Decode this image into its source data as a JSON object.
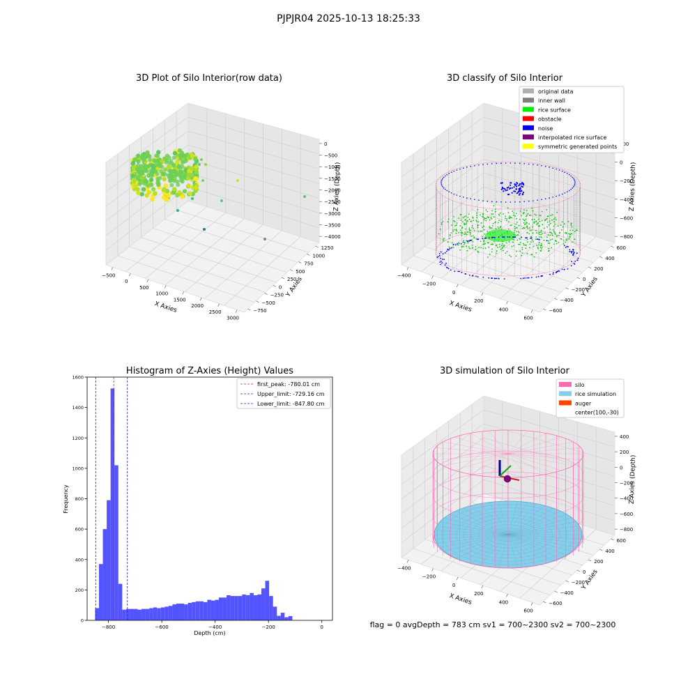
{
  "figure": {
    "suptitle": "PJPJR04 2025-10-13 18:25:33",
    "status_line": "flag = 0     avgDepth = 783 cm  sv1 = 700~2300  sv2 = 700~2300"
  },
  "chart_data": [
    {
      "type": "scatter",
      "projection": "3d",
      "title": "3D Plot of Silo Interior(row data)",
      "xlabel": "X Axies",
      "ylabel": "Y Axies",
      "zlabel": "Z Axies (Depth)",
      "xticks": [
        "−500",
        "0",
        "500",
        "1000",
        "1500",
        "2000",
        "2500",
        "3000"
      ],
      "yticks": [
        "−750",
        "−500",
        "−250",
        "0",
        "250",
        "500",
        "750",
        "1000",
        "1250"
      ],
      "zticks": [
        "0",
        "−500",
        "−1000",
        "−1500",
        "−2000",
        "−2500",
        "−3000",
        "−3500",
        "−4000"
      ],
      "xlim": [
        -600,
        3100
      ],
      "ylim": [
        -800,
        1350
      ],
      "zlim": [
        -4100,
        100
      ],
      "colormap": "viridis",
      "main_cloud": {
        "x_range": [
          -500,
          600
        ],
        "y_range": [
          -600,
          600
        ],
        "z_range": [
          -1600,
          -800
        ]
      },
      "outliers": [
        {
          "x": 400,
          "y": 300,
          "z": -1000
        },
        {
          "x": 500,
          "y": 200,
          "z": -1100
        },
        {
          "x": 600,
          "y": 100,
          "z": -1500
        },
        {
          "x": 900,
          "y": -100,
          "z": -1500
        },
        {
          "x": 700,
          "y": 0,
          "z": -2200
        },
        {
          "x": 200,
          "y": -300,
          "z": -2600
        },
        {
          "x": 400,
          "y": -500,
          "z": -2800
        },
        {
          "x": 1200,
          "y": -300,
          "z": -2000
        },
        {
          "x": 2600,
          "y": 500,
          "z": -1300
        },
        {
          "x": 2500,
          "y": -700,
          "z": -3500
        }
      ]
    },
    {
      "type": "scatter",
      "projection": "3d",
      "title": "3D classify of Silo Interior",
      "xlabel": "X Axies",
      "ylabel": "Y Axies",
      "zlabel": "Z Axies (Depth)",
      "xticks": [
        "−400",
        "−200",
        "0",
        "200",
        "400",
        "600"
      ],
      "yticks": [
        "−600",
        "−400",
        "−200",
        "0",
        "200",
        "400",
        "600"
      ],
      "zticks": [
        "200",
        "0",
        "−200",
        "−400",
        "−600",
        "−800"
      ],
      "xlim": [
        -500,
        700
      ],
      "ylim": [
        -650,
        650
      ],
      "zlim": [
        -900,
        250
      ],
      "legend_location": "upper right",
      "legend": [
        {
          "label": "original data",
          "color": "#b0b0b0"
        },
        {
          "label": "inner wall",
          "color": "#808080"
        },
        {
          "label": "rice surface",
          "color": "#00ee00"
        },
        {
          "label": "obstacle",
          "color": "#ff0000"
        },
        {
          "label": "noise",
          "color": "#0000ee"
        },
        {
          "label": "interpolated rice surface",
          "color": "#800080"
        },
        {
          "label": "symmetric generated points",
          "color": "#ffff00"
        }
      ],
      "silo": {
        "center": [
          100,
          -30
        ],
        "radius": 600,
        "top_z": 0,
        "bottom_z": -820
      }
    },
    {
      "type": "bar",
      "title": "Histogram of Z-Axies (Height) Values",
      "xlabel": "Depth (cm)",
      "ylabel": "Frequency",
      "xlim": [
        -880,
        40
      ],
      "ylim": [
        0,
        1600
      ],
      "xticks": [
        -800,
        -600,
        -400,
        -200,
        0
      ],
      "xtick_labels": [
        "−800",
        "−600",
        "−400",
        "−200",
        "0"
      ],
      "yticks": [
        0,
        200,
        400,
        600,
        800,
        1000,
        1200,
        1400,
        1600
      ],
      "ytick_labels": [
        "0",
        "200",
        "400",
        "600",
        "800",
        "1000",
        "1200",
        "1400",
        "1600"
      ],
      "bar_color": "#4b4bff",
      "bin_start": -850,
      "bin_width": 14.5,
      "counts": [
        80,
        370,
        600,
        790,
        1525,
        1020,
        240,
        70,
        75,
        75,
        75,
        70,
        75,
        75,
        80,
        85,
        80,
        85,
        90,
        95,
        105,
        110,
        110,
        105,
        115,
        120,
        125,
        125,
        120,
        135,
        130,
        135,
        150,
        150,
        165,
        160,
        160,
        160,
        170,
        165,
        180,
        165,
        170,
        210,
        260,
        160,
        90,
        30,
        50,
        20,
        28
      ],
      "legend_location": "upper right",
      "vlines": [
        {
          "x": -780.01,
          "label": "first_peak: -780.01 cm",
          "color": "#dd2222"
        },
        {
          "x": -729.16,
          "label": "Upper_limit: -729.16 cm",
          "color": "#2222dd"
        },
        {
          "x": -847.8,
          "label": "Lower_limit: -847.80 cm",
          "color": "#2222dd"
        }
      ]
    },
    {
      "type": "surface",
      "projection": "3d",
      "title": "3D simulation of Silo Interior",
      "xlabel": "X Axies",
      "ylabel": "Y Axies",
      "zlabel": "Z Axies (Depth)",
      "xticks": [
        "−400",
        "−200",
        "0",
        "200",
        "400",
        "600"
      ],
      "yticks": [
        "−600",
        "−400",
        "−200",
        "0",
        "200",
        "400",
        "600"
      ],
      "zticks": [
        "400",
        "200",
        "0",
        "−200",
        "−400",
        "−600",
        "−800"
      ],
      "xlim": [
        -500,
        700
      ],
      "ylim": [
        -650,
        650
      ],
      "zlim": [
        -900,
        450
      ],
      "legend_location": "upper right",
      "legend": [
        {
          "label": "silo",
          "color": "#ff69b4"
        },
        {
          "label": "rice simulation",
          "color": "#87ceeb"
        },
        {
          "label": "auger",
          "color": "#ff4500"
        },
        {
          "label": "center(100,-30)",
          "color": ""
        }
      ],
      "silo": {
        "center": [
          100,
          -30
        ],
        "radius": 600,
        "top_z": 0,
        "bottom_z": -800
      },
      "rice_surface_z": -783
    }
  ]
}
